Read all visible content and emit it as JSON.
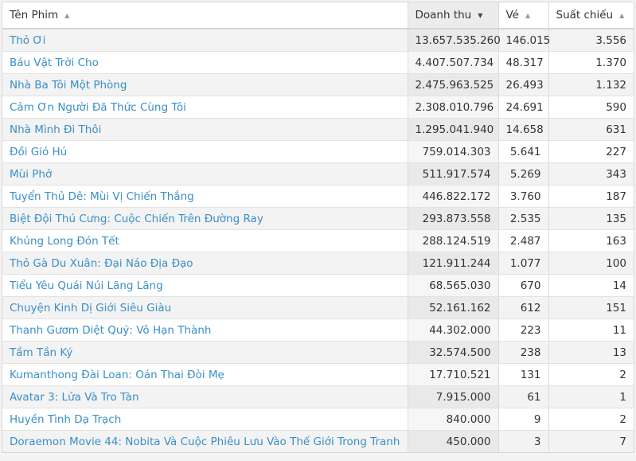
{
  "columns": [
    {
      "label": "Tên Phim",
      "sort": "asc"
    },
    {
      "label": "Doanh thu",
      "sort": "desc"
    },
    {
      "label": "Vé",
      "sort": "asc"
    },
    {
      "label": "Suất chiếu",
      "sort": "asc"
    }
  ],
  "icons": {
    "asc": "▲",
    "desc": "▼"
  },
  "rows": [
    [
      "Thỏ Ơi",
      "13.657.535.260",
      "146.015",
      "3.556"
    ],
    [
      "Báu Vật Trời Cho",
      "4.407.507.734",
      "48.317",
      "1.370"
    ],
    [
      "Nhà Ba Tôi Một Phòng",
      "2.475.963.525",
      "26.493",
      "1.132"
    ],
    [
      "Cảm Ơn Người Đã Thức Cùng Tôi",
      "2.308.010.796",
      "24.691",
      "590"
    ],
    [
      "Nhà Mình Đi Thôi",
      "1.295.041.940",
      "14.658",
      "631"
    ],
    [
      "Đồi Gió Hú",
      "759.014.303",
      "5.641",
      "227"
    ],
    [
      "Mùi Phở",
      "511.917.574",
      "5.269",
      "343"
    ],
    [
      "Tuyển Thủ Dê: Mùi Vị Chiến Thắng",
      "446.822.172",
      "3.760",
      "187"
    ],
    [
      "Biệt Đội Thú Cưng: Cuộc Chiến Trên Đường Ray",
      "293.873.558",
      "2.535",
      "135"
    ],
    [
      "Khủng Long Đón Tết",
      "288.124.519",
      "2.487",
      "163"
    ],
    [
      "Thỏ Gà Du Xuân: Đại Náo Địa Đạo",
      "121.911.244",
      "1.077",
      "100"
    ],
    [
      "Tiểu Yêu Quái Núi Lãng Lãng",
      "68.565.030",
      "670",
      "14"
    ],
    [
      "Chuyện Kinh Dị Giới Siêu Giàu",
      "52.161.162",
      "612",
      "151"
    ],
    [
      "Thanh Gươm Diệt Quỷ: Vô Hạn Thành",
      "44.302.000",
      "223",
      "11"
    ],
    [
      "Tầm Tần Ký",
      "32.574.500",
      "238",
      "13"
    ],
    [
      "Kumanthong Đài Loan: Oán Thai Đòi Mẹ",
      "17.710.521",
      "131",
      "2"
    ],
    [
      "Avatar 3: Lửa Và Tro Tàn",
      "7.915.000",
      "61",
      "1"
    ],
    [
      "Huyền Tình Dạ Trạch",
      "840.000",
      "9",
      "2"
    ],
    [
      "Doraemon Movie 44: Nobita Và Cuộc Phiêu Lưu Vào Thế Giới Trong Tranh",
      "450.000",
      "3",
      "7"
    ]
  ]
}
